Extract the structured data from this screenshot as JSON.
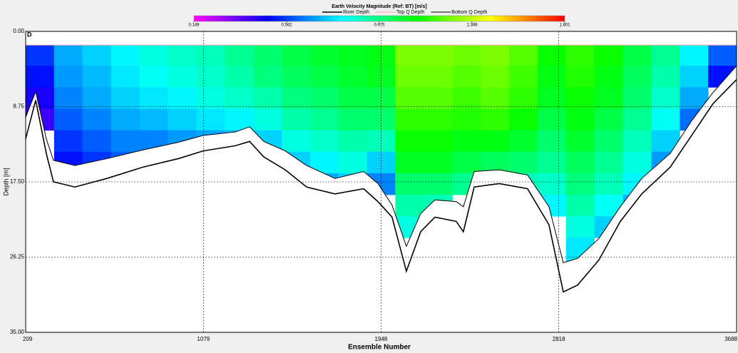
{
  "chart_data": {
    "type": "contour",
    "title": "Earth Velocity Magnitude (Ref: BT) [m/s]",
    "panel_label": "D",
    "xlabel": "Ensemble Number",
    "ylabel": "Depth [m]",
    "xlim": [
      209,
      3688
    ],
    "xticks": [
      209,
      1079,
      1948,
      2818,
      3688
    ],
    "ylim": [
      0,
      35
    ],
    "y_inverted": true,
    "yticks": [
      {
        "value": 0,
        "label": "0.00"
      },
      {
        "value": 8.75,
        "label": "8.75"
      },
      {
        "value": 17.5,
        "label": "17.50"
      },
      {
        "value": 26.25,
        "label": "26.25"
      },
      {
        "value": 35,
        "label": "35.00"
      }
    ],
    "grid": true,
    "clim": [
      0.149,
      1.801
    ],
    "cticks": [
      0.149,
      0.562,
      0.975,
      1.388,
      1.801
    ],
    "colormap": [
      "#ff00ff",
      "#0000ff",
      "#00ffff",
      "#00ff00",
      "#ffff00",
      "#ff0000"
    ],
    "heatmap": {
      "x_edges": [
        209,
        348,
        487,
        627,
        766,
        905,
        1044,
        1183,
        1322,
        1462,
        1601,
        1740,
        1879,
        2018,
        2157,
        2297,
        2436,
        2575,
        2714,
        2853,
        2992,
        3132,
        3271,
        3410,
        3549,
        3688
      ],
      "depth_edges": [
        1.6,
        4,
        6.5,
        9,
        11.5,
        14,
        16.5,
        19,
        21.5,
        24,
        27
      ],
      "values": [
        [
          0.55,
          0.5,
          0.45,
          0.4,
          null,
          null,
          null,
          null,
          null,
          null
        ],
        [
          0.7,
          0.68,
          0.65,
          0.6,
          0.55,
          0.5,
          null,
          null,
          null,
          null
        ],
        [
          0.75,
          0.72,
          0.7,
          0.65,
          0.6,
          0.55,
          null,
          null,
          null,
          null
        ],
        [
          0.8,
          0.78,
          0.75,
          0.7,
          0.65,
          0.6,
          null,
          null,
          null,
          null
        ],
        [
          0.85,
          0.82,
          0.78,
          0.72,
          0.65,
          null,
          null,
          null,
          null,
          null
        ],
        [
          0.88,
          0.85,
          0.8,
          0.75,
          0.68,
          null,
          null,
          null,
          null,
          null
        ],
        [
          0.9,
          0.88,
          0.85,
          0.78,
          0.7,
          null,
          null,
          null,
          null,
          null
        ],
        [
          0.95,
          0.92,
          0.88,
          0.8,
          0.72,
          null,
          null,
          null,
          null,
          null
        ],
        [
          1.0,
          0.98,
          0.92,
          0.85,
          0.75,
          null,
          null,
          null,
          null,
          null
        ],
        [
          1.05,
          1.02,
          0.98,
          0.92,
          0.85,
          0.75,
          null,
          null,
          null,
          null
        ],
        [
          1.08,
          1.05,
          1.0,
          0.95,
          0.88,
          0.8,
          0.7,
          null,
          null,
          null
        ],
        [
          1.1,
          1.08,
          1.05,
          1.0,
          0.92,
          0.85,
          0.75,
          null,
          null,
          null
        ],
        [
          1.12,
          1.1,
          1.05,
          1.0,
          0.9,
          0.75,
          0.65,
          null,
          null,
          null
        ],
        [
          1.3,
          1.28,
          1.25,
          1.2,
          1.15,
          1.1,
          1.0,
          0.92,
          0.85,
          null
        ],
        [
          1.3,
          1.28,
          1.25,
          1.2,
          1.15,
          1.1,
          1.0,
          0.9,
          null,
          null
        ],
        [
          1.28,
          1.25,
          1.22,
          1.18,
          1.12,
          1.05,
          0.95,
          null,
          null,
          null
        ],
        [
          1.3,
          1.28,
          1.25,
          1.2,
          1.12,
          1.02,
          null,
          null,
          null,
          null
        ],
        [
          1.25,
          1.22,
          1.2,
          1.15,
          1.08,
          1.0,
          0.9,
          null,
          null,
          null
        ],
        [
          1.15,
          1.12,
          1.1,
          1.05,
          1.0,
          0.95,
          0.88,
          0.8,
          null,
          null
        ],
        [
          1.2,
          1.18,
          1.15,
          1.12,
          1.08,
          1.02,
          0.98,
          0.92,
          0.85,
          0.78
        ],
        [
          1.15,
          1.12,
          1.1,
          1.05,
          1.0,
          0.95,
          0.9,
          0.82,
          0.75,
          null
        ],
        [
          1.05,
          1.02,
          1.0,
          0.95,
          0.9,
          0.85,
          0.8,
          0.72,
          null,
          null
        ],
        [
          0.95,
          0.92,
          0.88,
          0.82,
          0.75,
          0.68,
          null,
          null,
          null,
          null
        ],
        [
          0.8,
          0.75,
          0.7,
          0.62,
          null,
          null,
          null,
          null,
          null,
          null
        ],
        [
          0.6,
          0.5,
          null,
          null,
          null,
          null,
          null,
          null,
          null,
          null
        ]
      ]
    },
    "x": [
      209,
      258,
      310,
      345,
      450,
      607,
      781,
      956,
      1078,
      1235,
      1305,
      1374,
      1479,
      1584,
      1723,
      1863,
      1933,
      2002,
      2072,
      2142,
      2212,
      2316,
      2351,
      2404,
      2526,
      2665,
      2770,
      2840,
      2910,
      3014,
      3119,
      3224,
      3363,
      3468,
      3573,
      3688
    ],
    "series": [
      {
        "name": "River Depth",
        "color": "#000000",
        "width": 1.6,
        "values": [
          12.5,
          8.0,
          14.2,
          17.5,
          18.1,
          17.1,
          15.8,
          14.8,
          13.9,
          13.3,
          12.8,
          14.6,
          16.1,
          18.1,
          18.9,
          18.3,
          19.8,
          21.6,
          27.9,
          23.3,
          21.6,
          22.1,
          23.3,
          18.1,
          17.7,
          18.3,
          22.5,
          30.3,
          29.5,
          26.6,
          22.1,
          18.9,
          15.8,
          12.1,
          8.4,
          5.6
        ]
      },
      {
        "name": "Top Q Depth",
        "color": "#ff9fb0",
        "width": 1,
        "values": [
          1.6,
          1.6,
          1.6,
          1.6,
          1.6,
          1.6,
          1.6,
          1.6,
          1.6,
          1.6,
          1.6,
          1.6,
          1.6,
          1.6,
          1.6,
          1.6,
          1.6,
          1.6,
          1.6,
          1.6,
          1.6,
          1.6,
          1.6,
          1.6,
          1.6,
          1.6,
          1.6,
          1.6,
          1.6,
          1.6,
          1.6,
          1.6,
          1.6,
          1.6,
          1.6,
          1.6
        ]
      },
      {
        "name": "Bottom Q Depth",
        "color": "#000000",
        "width": 1,
        "values": [
          10.0,
          7.0,
          12.5,
          15.0,
          15.6,
          14.8,
          13.8,
          12.9,
          12.1,
          11.7,
          11.1,
          12.8,
          13.9,
          15.6,
          17.1,
          16.3,
          17.7,
          20.2,
          25.0,
          21.2,
          19.6,
          19.8,
          20.4,
          16.3,
          16.1,
          16.7,
          20.4,
          26.9,
          26.4,
          24.1,
          20.4,
          17.1,
          14.2,
          10.4,
          7.1,
          4.0
        ]
      }
    ]
  }
}
